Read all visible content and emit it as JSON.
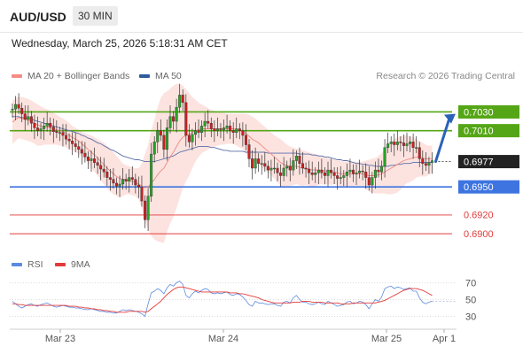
{
  "header": {
    "symbol": "AUD/USD",
    "timeframe": "30 MIN",
    "datetime": "Wednesday, March 25, 2026 5:18:31 AM CET"
  },
  "legend": {
    "ma_bb": {
      "label": "MA 20 + Bollinger Bands",
      "color": "#f48c84"
    },
    "ma50": {
      "label": "MA 50",
      "color": "#2d5a9b"
    },
    "credit": "Research © 2026 Trading Central"
  },
  "chart_data": [
    {
      "type": "candlestick",
      "x_ticks": [
        "Mar 23",
        "Mar 24",
        "Mar 25",
        "Apr 1"
      ],
      "ylim": [
        0.6885,
        0.7055
      ],
      "current_price": {
        "value": 0.6977,
        "label": "0.6977"
      },
      "levels": [
        {
          "value": 0.703,
          "label": "0.7030",
          "kind": "resistance",
          "color": "#55a616"
        },
        {
          "value": 0.701,
          "label": "0.7010",
          "kind": "resistance",
          "color": "#55a616"
        },
        {
          "value": 0.695,
          "label": "0.6950",
          "kind": "pivot",
          "color": "#3d74e0"
        },
        {
          "value": 0.692,
          "label": "0.6920",
          "kind": "support",
          "color": "#e23a3a"
        },
        {
          "value": 0.69,
          "label": "0.6900",
          "kind": "support",
          "color": "#e23a3a"
        }
      ],
      "projection": {
        "from": 0.6977,
        "to": 0.7028,
        "color": "#2a62b8"
      },
      "close": [
        0.7033,
        0.7038,
        0.7034,
        0.7028,
        0.7022,
        0.7025,
        0.7018,
        0.7013,
        0.701,
        0.7012,
        0.7015,
        0.7018,
        0.7014,
        0.7009,
        0.7008,
        0.7008,
        0.7005,
        0.7001,
        0.6999,
        0.6996,
        0.6993,
        0.699,
        0.6986,
        0.6982,
        0.6978,
        0.698,
        0.6976,
        0.6973,
        0.6969,
        0.6966,
        0.696,
        0.6958,
        0.6954,
        0.6951,
        0.6953,
        0.6958,
        0.6956,
        0.696,
        0.6958,
        0.6952,
        0.695,
        0.6935,
        0.6915,
        0.694,
        0.6985,
        0.6998,
        0.701,
        0.7005,
        0.699,
        0.7013,
        0.7025,
        0.702,
        0.7035,
        0.7048,
        0.704,
        0.7005,
        0.6998,
        0.7006,
        0.701,
        0.7008,
        0.7015,
        0.702,
        0.7018,
        0.7012,
        0.701,
        0.7012,
        0.7011,
        0.7013,
        0.7015,
        0.701,
        0.7008,
        0.7012,
        0.701,
        0.7005,
        0.6995,
        0.698,
        0.697,
        0.698,
        0.6975,
        0.6975,
        0.6972,
        0.6968,
        0.697,
        0.697,
        0.6965,
        0.6962,
        0.697,
        0.6972,
        0.6968,
        0.6978,
        0.6983,
        0.6975,
        0.697,
        0.6969,
        0.6965,
        0.6963,
        0.6965,
        0.6968,
        0.6965,
        0.6962,
        0.6968,
        0.6965,
        0.6962,
        0.6959,
        0.696,
        0.6962,
        0.6966,
        0.6968,
        0.6964,
        0.6965,
        0.6967,
        0.6966,
        0.696,
        0.6952,
        0.696,
        0.6968,
        0.6966,
        0.6972,
        0.6992,
        0.6996,
        0.6998,
        0.6995,
        0.6998,
        0.6997,
        0.6994,
        0.6996,
        0.6998,
        0.6992,
        0.6992,
        0.698,
        0.6975,
        0.6973,
        0.6976,
        0.6978
      ],
      "ma20": [
        0.7019,
        0.7022,
        0.7024,
        0.7023,
        0.7022,
        0.7021,
        0.702,
        0.7018,
        0.7016,
        0.7015,
        0.7014,
        0.7014,
        0.7013,
        0.7012,
        0.7011,
        0.701,
        0.7009,
        0.7007,
        0.7005,
        0.7003,
        0.7001,
        0.6999,
        0.6996,
        0.6993,
        0.699,
        0.6987,
        0.6984,
        0.6981,
        0.6977,
        0.6974,
        0.697,
        0.6967,
        0.6964,
        0.6961,
        0.6959,
        0.6958,
        0.6958,
        0.6957,
        0.6956,
        0.6955,
        0.6953,
        0.6951,
        0.6949,
        0.695,
        0.6954,
        0.6958,
        0.6963,
        0.6967,
        0.697,
        0.6976,
        0.6982,
        0.6987,
        0.6993,
        0.6999,
        0.7003,
        0.7005,
        0.7006,
        0.7008,
        0.701,
        0.7011,
        0.7012,
        0.7012,
        0.7012,
        0.7012,
        0.7012,
        0.7012,
        0.7012,
        0.7012,
        0.7012,
        0.7012,
        0.7012,
        0.7011,
        0.701,
        0.7009,
        0.7007,
        0.7004,
        0.7001,
        0.6999,
        0.6997,
        0.6994,
        0.6991,
        0.6988,
        0.6985,
        0.6982,
        0.6979,
        0.6976,
        0.6974,
        0.6973,
        0.6972,
        0.6972,
        0.6972,
        0.6971,
        0.697,
        0.697,
        0.6969,
        0.6968,
        0.6968,
        0.6968,
        0.6968,
        0.6967,
        0.6967,
        0.6966,
        0.6966,
        0.6965,
        0.6964,
        0.6964,
        0.6964,
        0.6964,
        0.6964,
        0.6964,
        0.6964,
        0.6964,
        0.6963,
        0.6962,
        0.6962,
        0.6962,
        0.6963,
        0.6964,
        0.6966,
        0.6968,
        0.697,
        0.6972,
        0.6974,
        0.6976,
        0.6978,
        0.6979,
        0.698,
        0.6981,
        0.6982,
        0.6982,
        0.6981,
        0.698,
        0.698,
        0.698
      ],
      "bb_upper": [
        0.7042,
        0.7045,
        0.7046,
        0.7046,
        0.7045,
        0.7044,
        0.7042,
        0.704,
        0.7038,
        0.7036,
        0.7034,
        0.7033,
        0.7031,
        0.7029,
        0.7027,
        0.7025,
        0.7023,
        0.7021,
        0.7018,
        0.7015,
        0.7013,
        0.7011,
        0.7009,
        0.7007,
        0.7006,
        0.7005,
        0.7003,
        0.7001,
        0.6999,
        0.6997,
        0.6994,
        0.6991,
        0.6987,
        0.6983,
        0.6979,
        0.6975,
        0.6973,
        0.6972,
        0.6971,
        0.697,
        0.697,
        0.6975,
        0.6985,
        0.6995,
        0.701,
        0.7022,
        0.7035,
        0.7045,
        0.705,
        0.7052,
        0.7055,
        0.7058,
        0.706,
        0.706,
        0.7058,
        0.7054,
        0.705,
        0.7046,
        0.7043,
        0.704,
        0.7038,
        0.7036,
        0.7034,
        0.7032,
        0.7031,
        0.703,
        0.7029,
        0.7029,
        0.7028,
        0.7028,
        0.7028,
        0.7028,
        0.7028,
        0.7028,
        0.7028,
        0.7027,
        0.7025,
        0.7023,
        0.702,
        0.7017,
        0.7014,
        0.7011,
        0.7008,
        0.7005,
        0.7003,
        0.7001,
        0.6998,
        0.6995,
        0.6993,
        0.6992,
        0.6991,
        0.699,
        0.6989,
        0.6988,
        0.6987,
        0.6986,
        0.6985,
        0.6984,
        0.6983,
        0.6982,
        0.6981,
        0.698,
        0.6979,
        0.6978,
        0.6978,
        0.6977,
        0.6977,
        0.6977,
        0.6977,
        0.6977,
        0.6977,
        0.6977,
        0.6978,
        0.6979,
        0.698,
        0.6981,
        0.6983,
        0.6986,
        0.699,
        0.6994,
        0.6998,
        0.7001,
        0.7003,
        0.7004,
        0.7005,
        0.7005,
        0.7004,
        0.7003,
        0.7001,
        0.6999,
        0.6997,
        0.6995,
        0.6994,
        0.6994
      ],
      "bb_lower": [
        0.6996,
        0.6999,
        0.7002,
        0.7001,
        0.7,
        0.6999,
        0.6998,
        0.6996,
        0.6994,
        0.6994,
        0.6995,
        0.6995,
        0.6995,
        0.6995,
        0.6995,
        0.6994,
        0.6994,
        0.6992,
        0.6991,
        0.6989,
        0.6987,
        0.6985,
        0.6982,
        0.6979,
        0.6975,
        0.697,
        0.6966,
        0.6962,
        0.6957,
        0.6953,
        0.6948,
        0.6945,
        0.6942,
        0.694,
        0.6939,
        0.694,
        0.6942,
        0.6942,
        0.6941,
        0.694,
        0.6936,
        0.6927,
        0.6913,
        0.6905,
        0.6898,
        0.6894,
        0.6892,
        0.6891,
        0.689,
        0.6902,
        0.6911,
        0.6918,
        0.6927,
        0.6938,
        0.6948,
        0.6956,
        0.6962,
        0.697,
        0.6977,
        0.6982,
        0.6986,
        0.6988,
        0.699,
        0.6992,
        0.6993,
        0.6994,
        0.6995,
        0.6995,
        0.6996,
        0.6996,
        0.6996,
        0.6994,
        0.6992,
        0.699,
        0.6986,
        0.6981,
        0.6977,
        0.6975,
        0.6974,
        0.6971,
        0.6968,
        0.6965,
        0.6962,
        0.6959,
        0.6955,
        0.6951,
        0.695,
        0.6951,
        0.6951,
        0.6952,
        0.6953,
        0.6952,
        0.6951,
        0.6952,
        0.6951,
        0.695,
        0.6951,
        0.6952,
        0.6953,
        0.6952,
        0.6953,
        0.6952,
        0.6953,
        0.6952,
        0.695,
        0.6951,
        0.6951,
        0.6951,
        0.6951,
        0.6951,
        0.6951,
        0.6951,
        0.6948,
        0.6945,
        0.6944,
        0.6943,
        0.6943,
        0.6943,
        0.6943,
        0.6942,
        0.6942,
        0.6943,
        0.6944,
        0.6947,
        0.6951,
        0.6954,
        0.6955,
        0.6957,
        0.696,
        0.6961,
        0.6961,
        0.6961,
        0.6963,
        0.6965,
        0.6966,
        0.6966
      ],
      "ma50": [
        0.7025,
        0.7025,
        0.7025,
        0.7024,
        0.7024,
        0.7023,
        0.7022,
        0.7021,
        0.702,
        0.7019,
        0.7018,
        0.7017,
        0.7016,
        0.7015,
        0.7014,
        0.7013,
        0.7012,
        0.7011,
        0.701,
        0.7009,
        0.7008,
        0.7007,
        0.7005,
        0.7004,
        0.7002,
        0.7001,
        0.6999,
        0.6997,
        0.6996,
        0.6994,
        0.6992,
        0.699,
        0.6989,
        0.6987,
        0.6985,
        0.6983,
        0.6982,
        0.6981,
        0.698,
        0.6979,
        0.6979,
        0.6978,
        0.6977,
        0.6977,
        0.6977,
        0.6977,
        0.6978,
        0.6979,
        0.698,
        0.6981,
        0.6982,
        0.6983,
        0.6985,
        0.6987,
        0.6988,
        0.6989,
        0.699,
        0.6991,
        0.6992,
        0.6993,
        0.6993,
        0.6993,
        0.6993,
        0.6992,
        0.6992,
        0.6991,
        0.699,
        0.6989,
        0.6989,
        0.6988,
        0.6988,
        0.6988,
        0.6988,
        0.6988,
        0.6987,
        0.6987,
        0.6987,
        0.6987,
        0.6987,
        0.6987,
        0.6987,
        0.6986,
        0.6986,
        0.6986,
        0.6986,
        0.6986,
        0.6986,
        0.6986,
        0.6986,
        0.6986,
        0.6986,
        0.6985,
        0.6985,
        0.6985,
        0.6985,
        0.6984,
        0.6984,
        0.6983,
        0.6983,
        0.6982,
        0.6982,
        0.6981,
        0.698,
        0.6979,
        0.6979,
        0.6978,
        0.6978,
        0.6977,
        0.6976,
        0.6975,
        0.6975,
        0.6974,
        0.6974,
        0.6973,
        0.6973,
        0.6972,
        0.6972,
        0.6972,
        0.6972,
        0.6972,
        0.6973,
        0.6973,
        0.6974,
        0.6974,
        0.6975,
        0.6975,
        0.6975,
        0.6976,
        0.6976,
        0.6976,
        0.6976,
        0.6976,
        0.6976,
        0.6976
      ]
    },
    {
      "type": "line",
      "legend": [
        {
          "name": "RSI",
          "color": "#5b8ae0"
        },
        {
          "name": "9MA",
          "color": "#e23a3a"
        }
      ],
      "ylim": [
        20,
        80
      ],
      "y_ticks": [
        "70",
        "50",
        "30"
      ],
      "rsi": [
        48,
        45,
        42,
        40,
        42,
        44,
        45,
        43,
        42,
        44,
        45,
        46,
        44,
        42,
        41,
        42,
        43,
        42,
        41,
        41,
        40,
        40,
        39,
        38,
        38,
        39,
        38,
        37,
        36,
        36,
        35,
        35,
        34,
        34,
        36,
        38,
        37,
        38,
        37,
        36,
        35,
        33,
        30,
        45,
        58,
        60,
        63,
        61,
        57,
        64,
        68,
        66,
        70,
        72,
        68,
        55,
        52,
        57,
        60,
        58,
        61,
        63,
        62,
        58,
        57,
        58,
        57,
        58,
        59,
        56,
        55,
        57,
        56,
        53,
        49,
        44,
        42,
        48,
        46,
        46,
        45,
        44,
        45,
        45,
        43,
        42,
        47,
        48,
        46,
        52,
        55,
        50,
        47,
        47,
        45,
        44,
        45,
        47,
        45,
        44,
        48,
        46,
        44,
        42,
        43,
        44,
        47,
        48,
        45,
        46,
        48,
        47,
        44,
        39,
        45,
        50,
        48,
        53,
        63,
        65,
        66,
        63,
        65,
        64,
        62,
        63,
        64,
        60,
        60,
        52,
        47,
        45,
        47,
        48
      ],
      "ma9": [
        45,
        45,
        44,
        44,
        43,
        43,
        43,
        43,
        43,
        43,
        43,
        43,
        43,
        43,
        43,
        43,
        43,
        43,
        42,
        42,
        42,
        41,
        41,
        40,
        40,
        39,
        39,
        38,
        38,
        37,
        37,
        36,
        36,
        35,
        35,
        35,
        35,
        36,
        36,
        36,
        36,
        36,
        35,
        36,
        39,
        42,
        45,
        48,
        52,
        56,
        59,
        62,
        64,
        65,
        65,
        64,
        63,
        62,
        61,
        60,
        59,
        59,
        59,
        59,
        59,
        59,
        59,
        59,
        59,
        58,
        58,
        58,
        57,
        57,
        56,
        55,
        54,
        53,
        52,
        50,
        49,
        48,
        47,
        46,
        46,
        46,
        46,
        46,
        46,
        47,
        47,
        47,
        48,
        48,
        48,
        47,
        47,
        47,
        47,
        46,
        46,
        46,
        46,
        46,
        45,
        45,
        45,
        45,
        46,
        46,
        46,
        46,
        46,
        46,
        46,
        46,
        47,
        48,
        49,
        51,
        53,
        55,
        57,
        59,
        61,
        62,
        63,
        63,
        63,
        62,
        61,
        59,
        57,
        55
      ]
    }
  ]
}
